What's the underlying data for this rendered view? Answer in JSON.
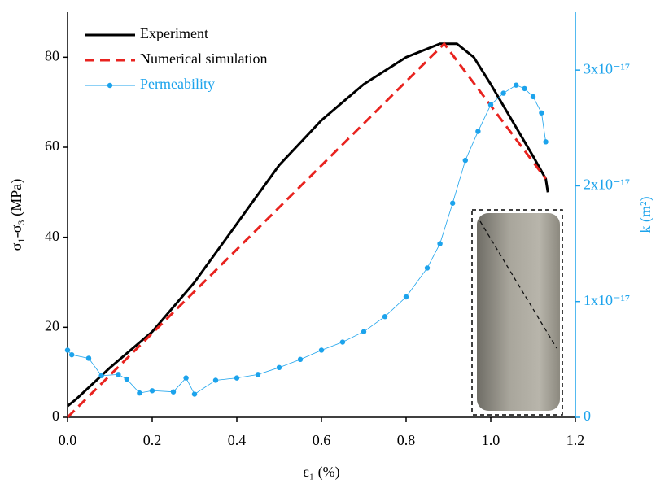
{
  "chart_data": {
    "type": "line",
    "x_label": "ε₁ (%)",
    "y_label": "σ₁-σ₃ (MPa)",
    "y2_label": "k (m²)",
    "xlim": [
      0,
      1.2
    ],
    "xticks": [
      {
        "value": 0,
        "label": "0.0"
      },
      {
        "value": 0.2,
        "label": "0.2"
      },
      {
        "value": 0.4,
        "label": "0.4"
      },
      {
        "value": 0.6,
        "label": "0.6"
      },
      {
        "value": 0.8,
        "label": "0.8"
      },
      {
        "value": 1.0,
        "label": "1.0"
      },
      {
        "value": 1.2,
        "label": "1.2"
      }
    ],
    "ylim": [
      0,
      90
    ],
    "yticks": [
      0,
      20,
      40,
      60,
      80
    ],
    "y2lim": [
      0,
      3.5e-17
    ],
    "y2ticks": [
      0,
      {
        "value": 1e-17,
        "label": "1x10⁻¹⁷"
      },
      {
        "value": 2e-17,
        "label": "2x10⁻¹⁷"
      },
      {
        "value": 3e-17,
        "label": "3x10⁻¹⁷"
      }
    ],
    "y2color": "#1ca3ec",
    "series": [
      {
        "name": "Experiment",
        "color": "#000000",
        "style": "solid",
        "x": [
          0,
          0.02,
          0.1,
          0.2,
          0.3,
          0.4,
          0.5,
          0.6,
          0.7,
          0.8,
          0.88,
          0.92,
          0.96,
          1.0,
          1.05,
          1.1,
          1.13,
          1.135
        ],
        "values": [
          2.5,
          4,
          11,
          19,
          30,
          43,
          56,
          66,
          74,
          80,
          83,
          83,
          80,
          74,
          66,
          58,
          53,
          50
        ]
      },
      {
        "name": "Numerical simulation",
        "color": "#e8231f",
        "style": "dashed",
        "x": [
          0,
          0.89,
          1.13
        ],
        "values": [
          0,
          83,
          53
        ]
      },
      {
        "name": "Permeability",
        "color": "#1ca3ec",
        "style": "dots",
        "axis": "y2",
        "x": [
          0,
          0.01,
          0.05,
          0.08,
          0.12,
          0.14,
          0.17,
          0.2,
          0.25,
          0.28,
          0.3,
          0.35,
          0.4,
          0.45,
          0.5,
          0.55,
          0.6,
          0.65,
          0.7,
          0.75,
          0.8,
          0.85,
          0.88,
          0.91,
          0.94,
          0.97,
          1.0,
          1.03,
          1.06,
          1.08,
          1.1,
          1.12,
          1.13
        ],
        "values": [
          5.8e-18,
          5.4e-18,
          5.1e-18,
          3.6e-18,
          3.7e-18,
          3.3e-18,
          2.1e-18,
          2.3e-18,
          2.2e-18,
          3.4e-18,
          2e-18,
          3.2e-18,
          3.4e-18,
          3.7e-18,
          4.3e-18,
          5e-18,
          5.8e-18,
          6.5e-18,
          7.4e-18,
          8.7e-18,
          1.04e-17,
          1.29e-17,
          1.5e-17,
          1.85e-17,
          2.22e-17,
          2.47e-17,
          2.7e-17,
          2.8e-17,
          2.87e-17,
          2.84e-17,
          2.77e-17,
          2.63e-17,
          2.38e-17
        ]
      }
    ]
  }
}
